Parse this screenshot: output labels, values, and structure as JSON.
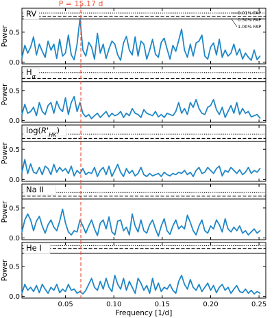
{
  "chart_data": {
    "type": "line",
    "xlabel": "Frequency [1/d]",
    "xlim": [
      0.005,
      0.257
    ],
    "x_ticks": [
      "0.05",
      "0.10",
      "0.15",
      "0.20",
      "0.25"
    ],
    "x_tick_values": [
      0.05,
      0.1,
      0.15,
      0.2,
      0.25
    ],
    "line_color": "#1f87c6",
    "marker_color": "#e8553b",
    "period_marker": {
      "label": "P = 15.17 d",
      "frequency": 0.0659
    },
    "fap_legend": [
      "0.01% FAP",
      "0.50% FAP",
      "1.00% FAP"
    ],
    "panels": [
      {
        "label": "RV",
        "ylabel": "Power",
        "ylim": [
          -0.03,
          0.9
        ],
        "y_ticks": [
          0.0,
          0.5
        ],
        "y_tick_labels": [
          "0.0",
          "0.5"
        ],
        "fap_levels": [
          0.82,
          0.76,
          0.72
        ],
        "x": [
          0.005,
          0.008,
          0.011,
          0.014,
          0.017,
          0.02,
          0.023,
          0.026,
          0.029,
          0.032,
          0.035,
          0.038,
          0.041,
          0.044,
          0.047,
          0.05,
          0.053,
          0.056,
          0.059,
          0.062,
          0.065,
          0.068,
          0.071,
          0.074,
          0.077,
          0.08,
          0.083,
          0.086,
          0.089,
          0.092,
          0.095,
          0.098,
          0.101,
          0.104,
          0.107,
          0.11,
          0.113,
          0.116,
          0.119,
          0.122,
          0.125,
          0.128,
          0.131,
          0.134,
          0.137,
          0.14,
          0.143,
          0.146,
          0.149,
          0.152,
          0.155,
          0.158,
          0.161,
          0.164,
          0.167,
          0.17,
          0.173,
          0.176,
          0.179,
          0.182,
          0.185,
          0.188,
          0.191,
          0.194,
          0.197,
          0.2,
          0.203,
          0.206,
          0.209,
          0.212,
          0.215,
          0.218,
          0.221,
          0.224,
          0.227,
          0.23,
          0.233,
          0.236,
          0.239,
          0.242,
          0.245,
          0.248,
          0.251
        ],
        "y": [
          0.07,
          0.28,
          0.15,
          0.25,
          0.42,
          0.12,
          0.3,
          0.18,
          0.08,
          0.35,
          0.2,
          0.3,
          0.06,
          0.38,
          0.1,
          0.15,
          0.45,
          0.12,
          0.04,
          0.3,
          0.73,
          0.2,
          0.1,
          0.33,
          0.25,
          0.05,
          0.48,
          0.15,
          0.3,
          0.06,
          0.22,
          0.35,
          0.3,
          0.12,
          0.03,
          0.32,
          0.43,
          0.2,
          0.12,
          0.42,
          0.1,
          0.35,
          0.3,
          0.05,
          0.2,
          0.38,
          0.13,
          0.08,
          0.33,
          0.4,
          0.22,
          0.05,
          0.28,
          0.18,
          0.36,
          0.55,
          0.2,
          0.08,
          0.3,
          0.1,
          0.32,
          0.35,
          0.45,
          0.1,
          0.05,
          0.25,
          0.32,
          0.12,
          0.38,
          0.08,
          0.2,
          0.1,
          0.15,
          0.3,
          0.12,
          0.22,
          0.05,
          0.15,
          0.08,
          0.03,
          0.2,
          0.04,
          0.1
        ]
      },
      {
        "label": "Hα",
        "ylabel": "Power",
        "ylim": [
          -0.03,
          0.9
        ],
        "y_ticks": [
          0.0,
          0.5
        ],
        "y_tick_labels": [
          "0.0",
          "0.5"
        ],
        "fap_levels": [
          0.8,
          0.7,
          0.65
        ],
        "x": [
          0.005,
          0.008,
          0.011,
          0.014,
          0.017,
          0.02,
          0.023,
          0.026,
          0.029,
          0.032,
          0.035,
          0.038,
          0.041,
          0.044,
          0.047,
          0.05,
          0.053,
          0.056,
          0.059,
          0.062,
          0.065,
          0.068,
          0.071,
          0.074,
          0.077,
          0.08,
          0.083,
          0.086,
          0.089,
          0.092,
          0.095,
          0.098,
          0.101,
          0.104,
          0.107,
          0.11,
          0.113,
          0.116,
          0.119,
          0.122,
          0.125,
          0.128,
          0.131,
          0.134,
          0.137,
          0.14,
          0.143,
          0.146,
          0.149,
          0.152,
          0.155,
          0.158,
          0.161,
          0.164,
          0.167,
          0.17,
          0.173,
          0.176,
          0.179,
          0.182,
          0.185,
          0.188,
          0.191,
          0.194,
          0.197,
          0.2,
          0.203,
          0.206,
          0.209,
          0.212,
          0.215,
          0.218,
          0.221,
          0.224,
          0.227,
          0.23,
          0.233,
          0.236,
          0.239,
          0.242,
          0.245,
          0.248,
          0.251
        ],
        "y": [
          0.1,
          0.27,
          0.12,
          0.15,
          0.22,
          0.08,
          0.3,
          0.15,
          0.1,
          0.25,
          0.3,
          0.12,
          0.32,
          0.2,
          0.15,
          0.38,
          0.1,
          0.3,
          0.4,
          0.15,
          0.3,
          0.12,
          0.06,
          0.1,
          0.03,
          0.08,
          0.12,
          0.05,
          0.1,
          0.15,
          0.06,
          0.12,
          0.08,
          0.1,
          0.15,
          0.05,
          0.12,
          0.08,
          0.2,
          0.12,
          0.1,
          0.05,
          0.18,
          0.12,
          0.1,
          0.08,
          0.15,
          0.06,
          0.1,
          0.05,
          0.12,
          0.1,
          0.08,
          0.15,
          0.3,
          0.12,
          0.2,
          0.1,
          0.3,
          0.22,
          0.35,
          0.2,
          0.12,
          0.1,
          0.22,
          0.25,
          0.35,
          0.18,
          0.1,
          0.22,
          0.05,
          0.15,
          0.25,
          0.12,
          0.3,
          0.1,
          0.2,
          0.12,
          0.15,
          0.06,
          0.08,
          0.1,
          0.04
        ]
      },
      {
        "label": "log(R'HK)",
        "ylabel": "Power",
        "ylim": [
          -0.03,
          0.9
        ],
        "y_ticks": [
          0.0,
          0.5
        ],
        "y_tick_labels": [
          "0.0",
          "0.5"
        ],
        "fap_levels": [
          0.75,
          0.68,
          0.63
        ],
        "x": [
          0.005,
          0.008,
          0.011,
          0.014,
          0.017,
          0.02,
          0.023,
          0.026,
          0.029,
          0.032,
          0.035,
          0.038,
          0.041,
          0.044,
          0.047,
          0.05,
          0.053,
          0.056,
          0.059,
          0.062,
          0.065,
          0.068,
          0.071,
          0.074,
          0.077,
          0.08,
          0.083,
          0.086,
          0.089,
          0.092,
          0.095,
          0.098,
          0.101,
          0.104,
          0.107,
          0.11,
          0.113,
          0.116,
          0.119,
          0.122,
          0.125,
          0.128,
          0.131,
          0.134,
          0.137,
          0.14,
          0.143,
          0.146,
          0.149,
          0.152,
          0.155,
          0.158,
          0.161,
          0.164,
          0.167,
          0.17,
          0.173,
          0.176,
          0.179,
          0.182,
          0.185,
          0.188,
          0.191,
          0.194,
          0.197,
          0.2,
          0.203,
          0.206,
          0.209,
          0.212,
          0.215,
          0.218,
          0.221,
          0.224,
          0.227,
          0.23,
          0.233,
          0.236,
          0.239,
          0.242,
          0.245,
          0.248,
          0.251
        ],
        "y": [
          0.12,
          0.33,
          0.1,
          0.26,
          0.12,
          0.1,
          0.2,
          0.08,
          0.22,
          0.18,
          0.08,
          0.25,
          0.12,
          0.2,
          0.14,
          0.18,
          0.1,
          0.22,
          0.06,
          0.15,
          0.1,
          0.18,
          0.08,
          0.12,
          0.1,
          0.2,
          0.05,
          0.15,
          0.2,
          0.08,
          0.22,
          0.05,
          0.15,
          0.25,
          0.12,
          0.05,
          0.18,
          0.1,
          0.15,
          0.06,
          0.1,
          0.2,
          0.08,
          0.05,
          0.1,
          0.06,
          0.08,
          0.1,
          0.05,
          0.12,
          0.08,
          0.06,
          0.1,
          0.08,
          0.12,
          0.1,
          0.15,
          0.08,
          0.12,
          0.05,
          0.15,
          0.2,
          0.1,
          0.12,
          0.2,
          0.15,
          0.1,
          0.18,
          0.22,
          0.06,
          0.15,
          0.12,
          0.2,
          0.15,
          0.1,
          0.16,
          0.08,
          0.12,
          0.2,
          0.1,
          0.15,
          0.12,
          0.18
        ]
      },
      {
        "label": "Na II",
        "ylabel": "Power",
        "ylim": [
          -0.03,
          0.9
        ],
        "y_ticks": [
          0.0,
          0.5
        ],
        "y_tick_labels": [
          "0.0",
          "0.5"
        ],
        "fap_levels": [
          0.76,
          0.7,
          0.65
        ],
        "x": [
          0.005,
          0.008,
          0.011,
          0.014,
          0.017,
          0.02,
          0.023,
          0.026,
          0.029,
          0.032,
          0.035,
          0.038,
          0.041,
          0.044,
          0.047,
          0.05,
          0.053,
          0.056,
          0.059,
          0.062,
          0.065,
          0.068,
          0.071,
          0.074,
          0.077,
          0.08,
          0.083,
          0.086,
          0.089,
          0.092,
          0.095,
          0.098,
          0.101,
          0.104,
          0.107,
          0.11,
          0.113,
          0.116,
          0.119,
          0.122,
          0.125,
          0.128,
          0.131,
          0.134,
          0.137,
          0.14,
          0.143,
          0.146,
          0.149,
          0.152,
          0.155,
          0.158,
          0.161,
          0.164,
          0.167,
          0.17,
          0.173,
          0.176,
          0.179,
          0.182,
          0.185,
          0.188,
          0.191,
          0.194,
          0.197,
          0.2,
          0.203,
          0.206,
          0.209,
          0.212,
          0.215,
          0.218,
          0.221,
          0.224,
          0.227,
          0.23,
          0.233,
          0.236,
          0.239,
          0.242,
          0.245,
          0.248,
          0.251
        ],
        "y": [
          0.1,
          0.3,
          0.4,
          0.3,
          0.12,
          0.28,
          0.36,
          0.2,
          0.08,
          0.22,
          0.3,
          0.18,
          0.12,
          0.28,
          0.48,
          0.25,
          0.1,
          0.05,
          0.12,
          0.1,
          0.3,
          0.2,
          0.08,
          0.2,
          0.3,
          0.15,
          0.04,
          0.25,
          0.3,
          0.15,
          0.35,
          0.1,
          0.05,
          0.28,
          0.3,
          0.12,
          0.18,
          0.05,
          0.4,
          0.2,
          0.1,
          0.3,
          0.12,
          0.08,
          0.22,
          0.3,
          0.15,
          0.03,
          0.2,
          0.32,
          0.12,
          0.06,
          0.2,
          0.3,
          0.15,
          0.2,
          0.15,
          0.38,
          0.26,
          0.12,
          0.05,
          0.2,
          0.3,
          0.12,
          0.08,
          0.2,
          0.15,
          0.3,
          0.22,
          0.1,
          0.32,
          0.15,
          0.1,
          0.18,
          0.12,
          0.2,
          0.08,
          0.12,
          0.05,
          0.1,
          0.15,
          0.08,
          0.12
        ]
      },
      {
        "label": "He I",
        "ylabel": "Power",
        "ylim": [
          -0.03,
          0.9
        ],
        "y_ticks": [
          0.0,
          0.5
        ],
        "y_tick_labels": [
          "0.0",
          "0.5"
        ],
        "fap_levels": [
          0.85,
          0.8,
          0.72
        ],
        "x": [
          0.005,
          0.008,
          0.011,
          0.014,
          0.017,
          0.02,
          0.023,
          0.026,
          0.029,
          0.032,
          0.035,
          0.038,
          0.041,
          0.044,
          0.047,
          0.05,
          0.053,
          0.056,
          0.059,
          0.062,
          0.065,
          0.068,
          0.071,
          0.074,
          0.077,
          0.08,
          0.083,
          0.086,
          0.089,
          0.092,
          0.095,
          0.098,
          0.101,
          0.104,
          0.107,
          0.11,
          0.113,
          0.116,
          0.119,
          0.122,
          0.125,
          0.128,
          0.131,
          0.134,
          0.137,
          0.14,
          0.143,
          0.146,
          0.149,
          0.152,
          0.155,
          0.158,
          0.161,
          0.164,
          0.167,
          0.17,
          0.173,
          0.176,
          0.179,
          0.182,
          0.185,
          0.188,
          0.191,
          0.194,
          0.197,
          0.2,
          0.203,
          0.206,
          0.209,
          0.212,
          0.215,
          0.218,
          0.221,
          0.224,
          0.227,
          0.23,
          0.233,
          0.236,
          0.239,
          0.242,
          0.245,
          0.248,
          0.251
        ],
        "y": [
          0.05,
          0.2,
          0.1,
          0.15,
          0.08,
          0.18,
          0.06,
          0.2,
          0.12,
          0.05,
          0.15,
          0.1,
          0.2,
          0.06,
          0.12,
          0.08,
          0.2,
          0.1,
          0.12,
          0.05,
          0.08,
          0.04,
          0.1,
          0.2,
          0.3,
          0.15,
          0.1,
          0.25,
          0.12,
          0.3,
          0.15,
          0.08,
          0.35,
          0.2,
          0.12,
          0.3,
          0.1,
          0.25,
          0.15,
          0.05,
          0.3,
          0.22,
          0.1,
          0.18,
          0.05,
          0.3,
          0.1,
          0.22,
          0.08,
          0.15,
          0.12,
          0.2,
          0.1,
          0.05,
          0.25,
          0.35,
          0.2,
          0.12,
          0.28,
          0.15,
          0.1,
          0.2,
          0.08,
          0.15,
          0.22,
          0.1,
          0.18,
          0.06,
          0.15,
          0.2,
          0.1,
          0.15,
          0.05,
          0.12,
          0.18,
          0.08,
          0.06,
          0.12,
          0.05,
          0.1,
          0.04,
          0.08,
          0.05
        ]
      }
    ]
  }
}
